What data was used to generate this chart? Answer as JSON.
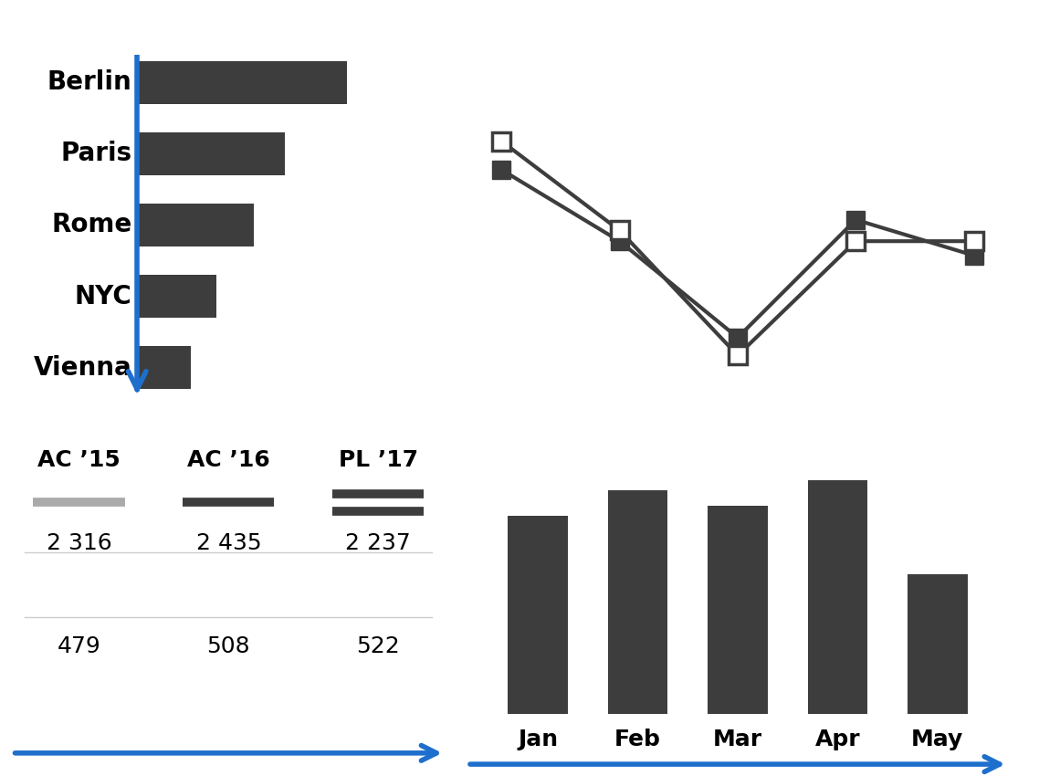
{
  "bg_color": "#ffffff",
  "bar_color": "#3d3d3d",
  "blue_arrow_color": "#1e6fcc",
  "hbar_labels": [
    "Berlin",
    "Paris",
    "Rome",
    "NYC",
    "Vienna"
  ],
  "hbar_values": [
    68,
    48,
    38,
    26,
    18
  ],
  "line_x": [
    0,
    1,
    2,
    3,
    4
  ],
  "line1_y": [
    92,
    72,
    45,
    78,
    68
  ],
  "line2_y": [
    100,
    75,
    40,
    72,
    72
  ],
  "line_color": "#3d3d3d",
  "bar_months": [
    "Jan",
    "Feb",
    "Mar",
    "Apr",
    "May"
  ],
  "bar_heights": [
    78,
    88,
    82,
    92,
    55
  ],
  "table_headers": [
    "AC ’15",
    "AC ’16",
    "PL ’17"
  ],
  "table_row1": [
    "2 316",
    "2 435",
    "2 237"
  ],
  "table_row2": [
    "479",
    "508",
    "522"
  ],
  "legend_colors": [
    "#aaaaaa",
    "#3d3d3d",
    "#3d3d3d"
  ],
  "font_size_labels": 20,
  "font_size_table": 18,
  "font_size_months": 18
}
